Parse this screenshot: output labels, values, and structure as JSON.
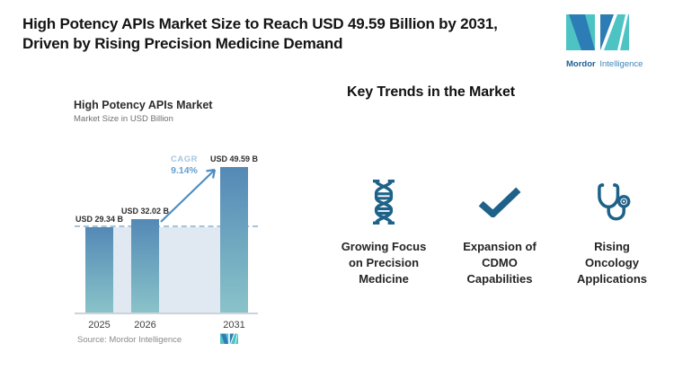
{
  "header": {
    "title_line1": "High Potency APIs Market Size to Reach USD 49.59 Billion by 2031,",
    "title_line2": "Driven by Rising Precision Medicine Demand",
    "brand_bold": "Mordor",
    "brand_light": "Intelligence"
  },
  "chart": {
    "title": "High Potency APIs Market",
    "subtitle": "Market Size in USD Billion",
    "cagr_label": "CAGR",
    "cagr_value": "9.14%",
    "source": "Source: Mordor Intelligence"
  },
  "chart_data": {
    "type": "bar",
    "title": "High Potency APIs Market",
    "subtitle": "Market Size in USD Billion",
    "categories": [
      "2025",
      "2026",
      "2031"
    ],
    "values": [
      29.34,
      32.02,
      49.59
    ],
    "value_labels": [
      "USD 29.34 B",
      "USD 32.02 B",
      "USD 49.59 B"
    ],
    "cagr": "9.14%",
    "ylim": [
      0,
      57.5
    ],
    "baseline_value": 29.34,
    "grid": "off",
    "legend": "none",
    "annotations": [
      "CAGR 9.14% arrow from 2026 bar to 2031 bar",
      "dashed baseline at 2025 level"
    ],
    "colors": {
      "bar_top": "#5489B6",
      "bar_bottom": "#8AC4C9",
      "band": "#E0E9F1",
      "dash": "#A6C3DA",
      "arrow": "#4D8EC2",
      "axis": "#CCD3DA"
    }
  },
  "trends": {
    "heading": "Key Trends in the Market",
    "items": [
      {
        "icon": "dna-icon",
        "label": "Growing Focus on Precision Medicine",
        "lines": [
          "Growing Focus",
          "on Precision",
          "Medicine"
        ]
      },
      {
        "icon": "check-icon",
        "label": "Expansion of CDMO Capabilities",
        "lines": [
          "Expansion of",
          "CDMO",
          "Capabilities"
        ]
      },
      {
        "icon": "stethoscope-icon",
        "label": "Rising Oncology Applications",
        "lines": [
          "Rising",
          "Oncology",
          "Applications"
        ]
      }
    ]
  },
  "theme": {
    "icon_color": "#1E6289",
    "logo_teal": "#4EC3C4",
    "logo_blue": "#2C7CB5"
  }
}
